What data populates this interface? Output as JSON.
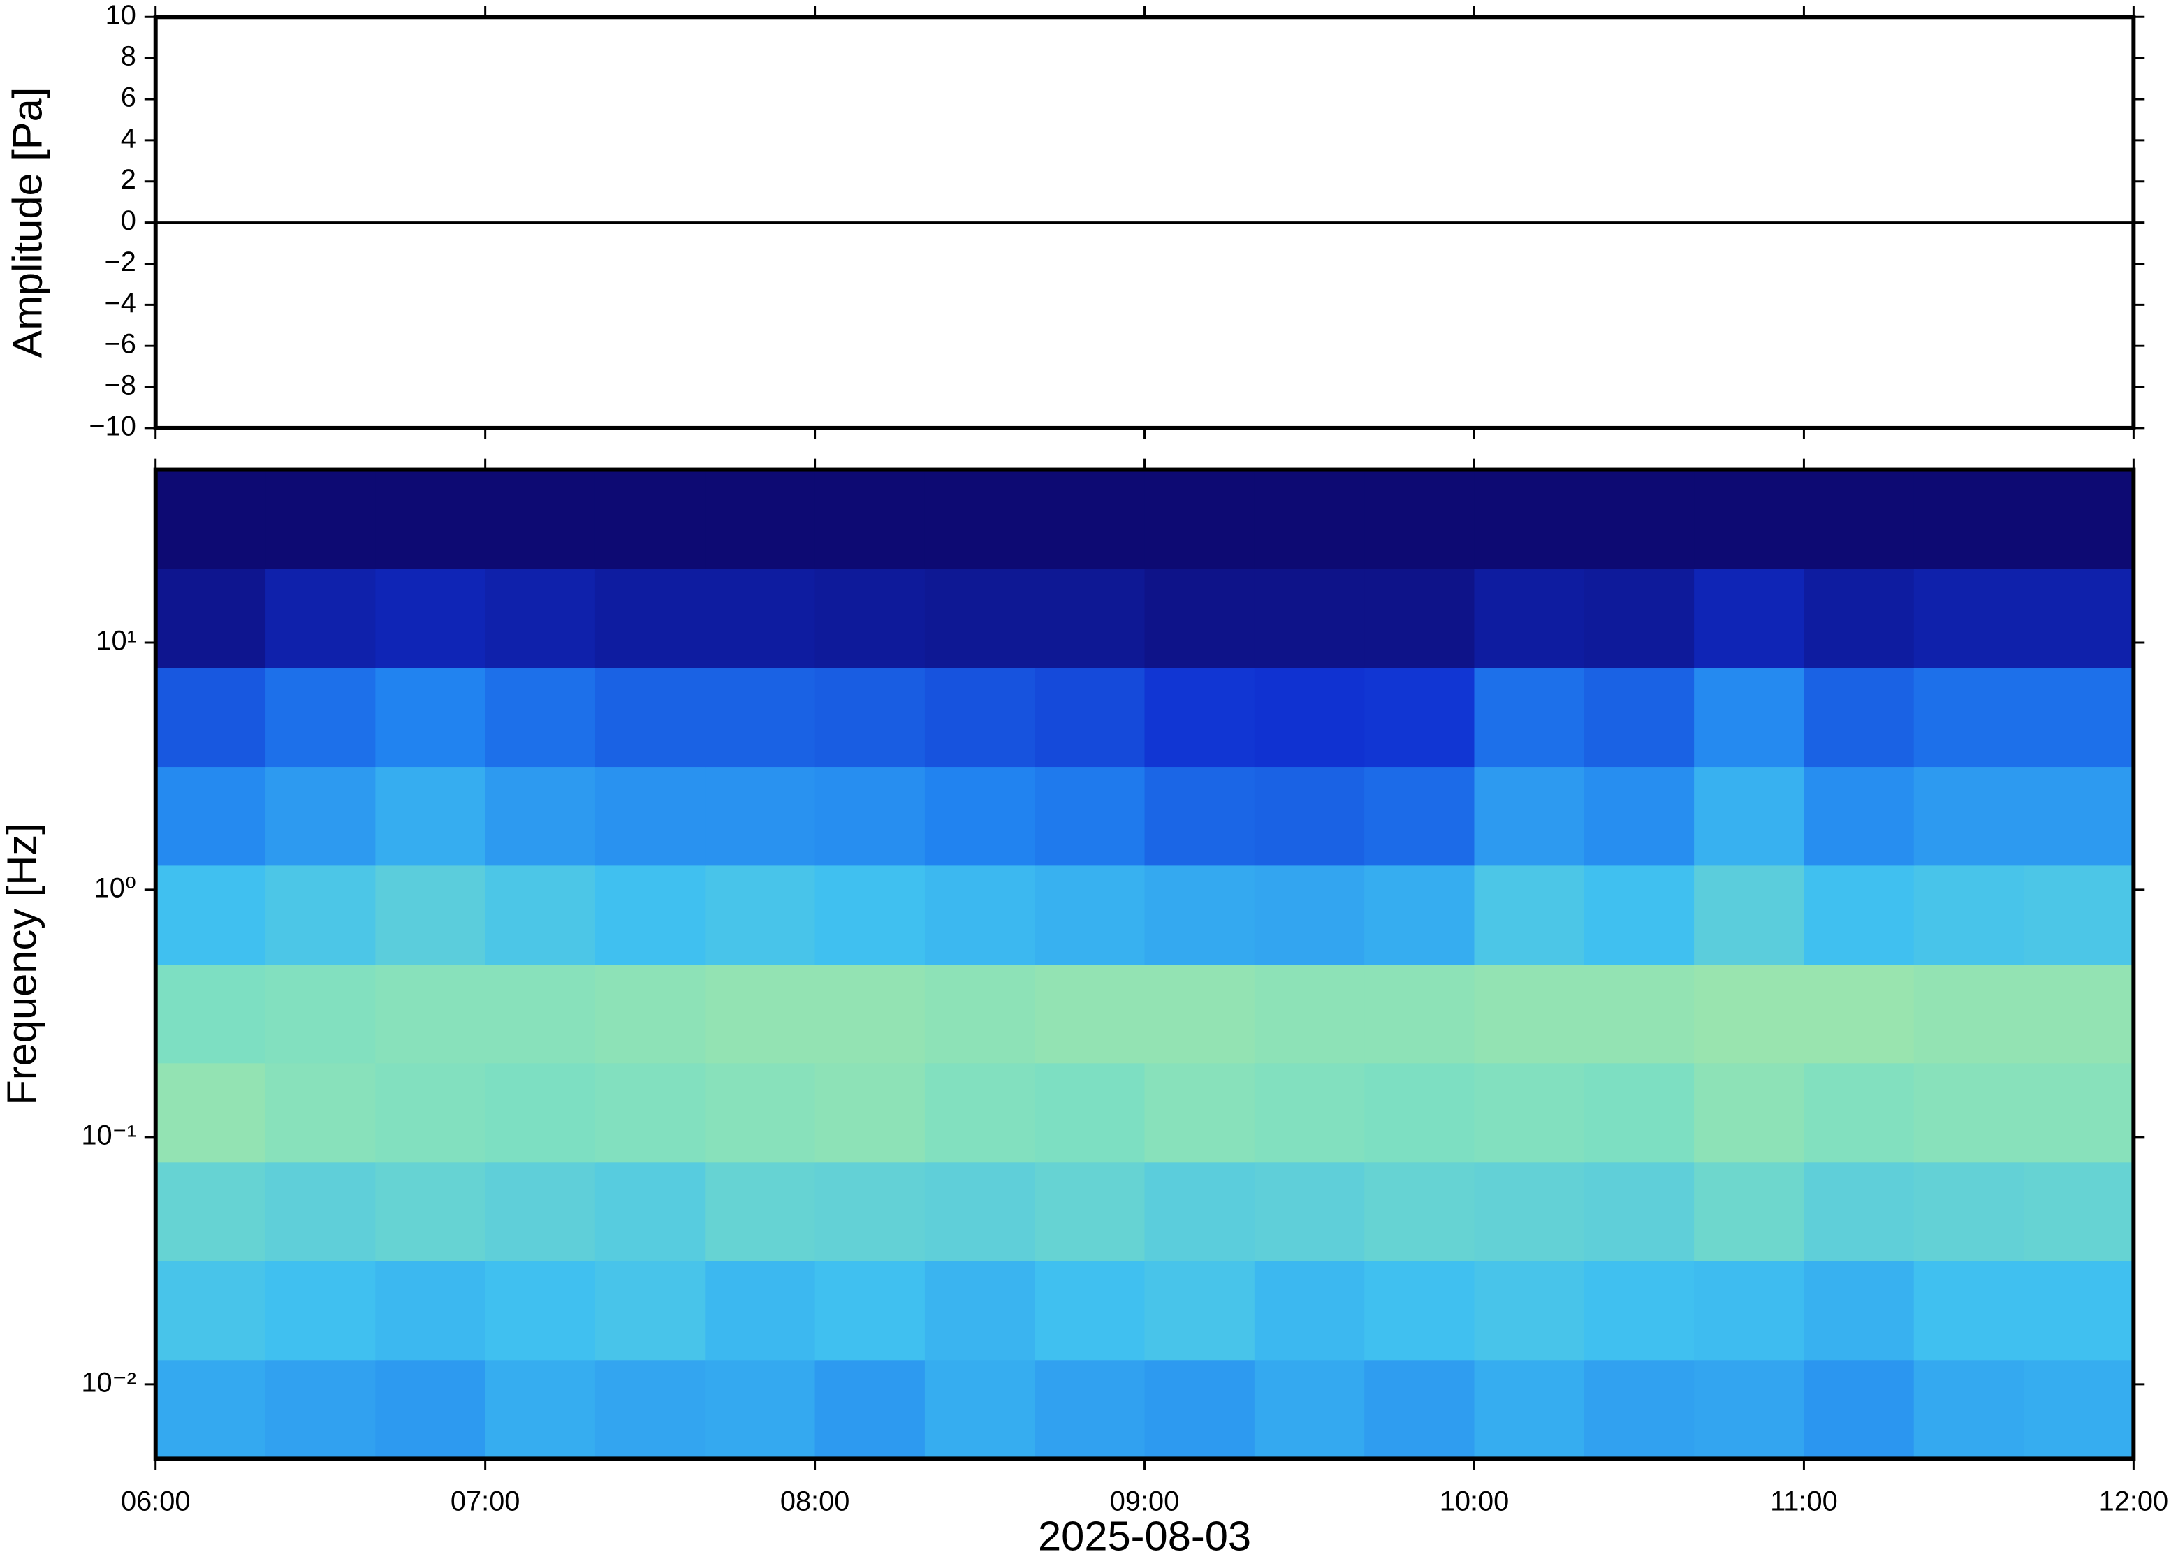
{
  "chart_data": [
    {
      "type": "line",
      "ylabel": "Amplitude [Pa]",
      "x": [
        360,
        375,
        390,
        405,
        420,
        435,
        450,
        465,
        480,
        495,
        510,
        525,
        540,
        555,
        570,
        585,
        600,
        615,
        630,
        645,
        660,
        675,
        690,
        705,
        720
      ],
      "series": [
        {
          "color": "#000000",
          "values": [
            0,
            0,
            0,
            0,
            0,
            0,
            0,
            0,
            0,
            0,
            0,
            0,
            0,
            0,
            0,
            0,
            0,
            0,
            0,
            0,
            0,
            0,
            0,
            0,
            0
          ]
        }
      ],
      "xlim": [
        360,
        720
      ],
      "xticks": [
        360,
        420,
        480,
        540,
        600,
        660,
        720
      ],
      "ylim": [
        -10,
        10
      ],
      "yticks": [
        {
          "value": -10,
          "label": "−10"
        },
        {
          "value": -8,
          "label": "−8"
        },
        {
          "value": -6,
          "label": "−6"
        },
        {
          "value": -4,
          "label": "−4"
        },
        {
          "value": -2,
          "label": "−2"
        },
        0,
        2,
        4,
        6,
        8,
        10
      ]
    },
    {
      "type": "heatmap",
      "ylabel": "Frequency [Hz]",
      "xlabel": "2025-08-03",
      "log_y": true,
      "xlim": [
        360,
        720
      ],
      "xticks": [
        {
          "value": 360,
          "label": "06:00"
        },
        {
          "value": 420,
          "label": "07:00"
        },
        {
          "value": 480,
          "label": "08:00"
        },
        {
          "value": 540,
          "label": "09:00"
        },
        {
          "value": 600,
          "label": "10:00"
        },
        {
          "value": 660,
          "label": "11:00"
        },
        {
          "value": 720,
          "label": "12:00"
        }
      ],
      "ylim": [
        0.005,
        50
      ],
      "yticks": [
        {
          "value": 0.01,
          "label": "10⁻²"
        },
        {
          "value": 0.1,
          "label": "10⁻¹"
        },
        {
          "value": 1,
          "label": "10⁰"
        },
        {
          "value": 10,
          "label": "10¹"
        }
      ],
      "x_bins": [
        360,
        380,
        400,
        420,
        440,
        460,
        480,
        500,
        520,
        540,
        560,
        580,
        600,
        620,
        640,
        660,
        680,
        700,
        720
      ],
      "y_bins": [
        0.005,
        0.0126,
        0.0316,
        0.0794,
        0.2,
        0.5,
        1.26,
        3.16,
        7.94,
        20,
        50
      ],
      "colormap": [
        "#0d0a73",
        "#1030d0",
        "#2080f0",
        "#40c0f0",
        "#80e0c0",
        "#e0f080",
        "#f0a050"
      ],
      "z": [
        [
          0.44,
          0.42,
          0.4,
          0.45,
          0.43,
          0.44,
          0.4,
          0.45,
          0.42,
          0.4,
          0.44,
          0.41,
          0.45,
          0.42,
          0.43,
          0.39,
          0.44,
          0.45
        ],
        [
          0.52,
          0.5,
          0.48,
          0.5,
          0.52,
          0.48,
          0.5,
          0.47,
          0.5,
          0.52,
          0.48,
          0.5,
          0.52,
          0.5,
          0.49,
          0.46,
          0.5,
          0.5
        ],
        [
          0.6,
          0.58,
          0.6,
          0.58,
          0.56,
          0.6,
          0.59,
          0.58,
          0.6,
          0.57,
          0.58,
          0.6,
          0.59,
          0.58,
          0.62,
          0.58,
          0.59,
          0.6
        ],
        [
          0.7,
          0.68,
          0.67,
          0.66,
          0.67,
          0.68,
          0.69,
          0.67,
          0.66,
          0.68,
          0.67,
          0.66,
          0.67,
          0.66,
          0.69,
          0.67,
          0.68,
          0.68
        ],
        [
          0.66,
          0.67,
          0.68,
          0.68,
          0.69,
          0.7,
          0.7,
          0.69,
          0.7,
          0.7,
          0.69,
          0.69,
          0.7,
          0.7,
          0.71,
          0.71,
          0.7,
          0.7
        ],
        [
          0.5,
          0.53,
          0.57,
          0.53,
          0.5,
          0.52,
          0.5,
          0.48,
          0.46,
          0.44,
          0.43,
          0.45,
          0.53,
          0.5,
          0.57,
          0.5,
          0.52,
          0.53
        ],
        [
          0.36,
          0.4,
          0.45,
          0.4,
          0.38,
          0.38,
          0.37,
          0.34,
          0.32,
          0.28,
          0.27,
          0.29,
          0.4,
          0.37,
          0.46,
          0.37,
          0.4,
          0.4
        ],
        [
          0.25,
          0.3,
          0.34,
          0.3,
          0.27,
          0.27,
          0.26,
          0.24,
          0.22,
          0.18,
          0.17,
          0.18,
          0.3,
          0.27,
          0.36,
          0.27,
          0.3,
          0.3
        ],
        [
          0.05,
          0.1,
          0.12,
          0.1,
          0.08,
          0.08,
          0.07,
          0.06,
          0.06,
          0.04,
          0.04,
          0.04,
          0.08,
          0.07,
          0.12,
          0.08,
          0.1,
          0.1
        ],
        [
          0,
          0,
          0,
          0,
          0,
          0,
          0,
          0,
          0,
          0,
          0,
          0,
          0,
          0,
          0,
          0,
          0,
          0
        ]
      ]
    }
  ]
}
